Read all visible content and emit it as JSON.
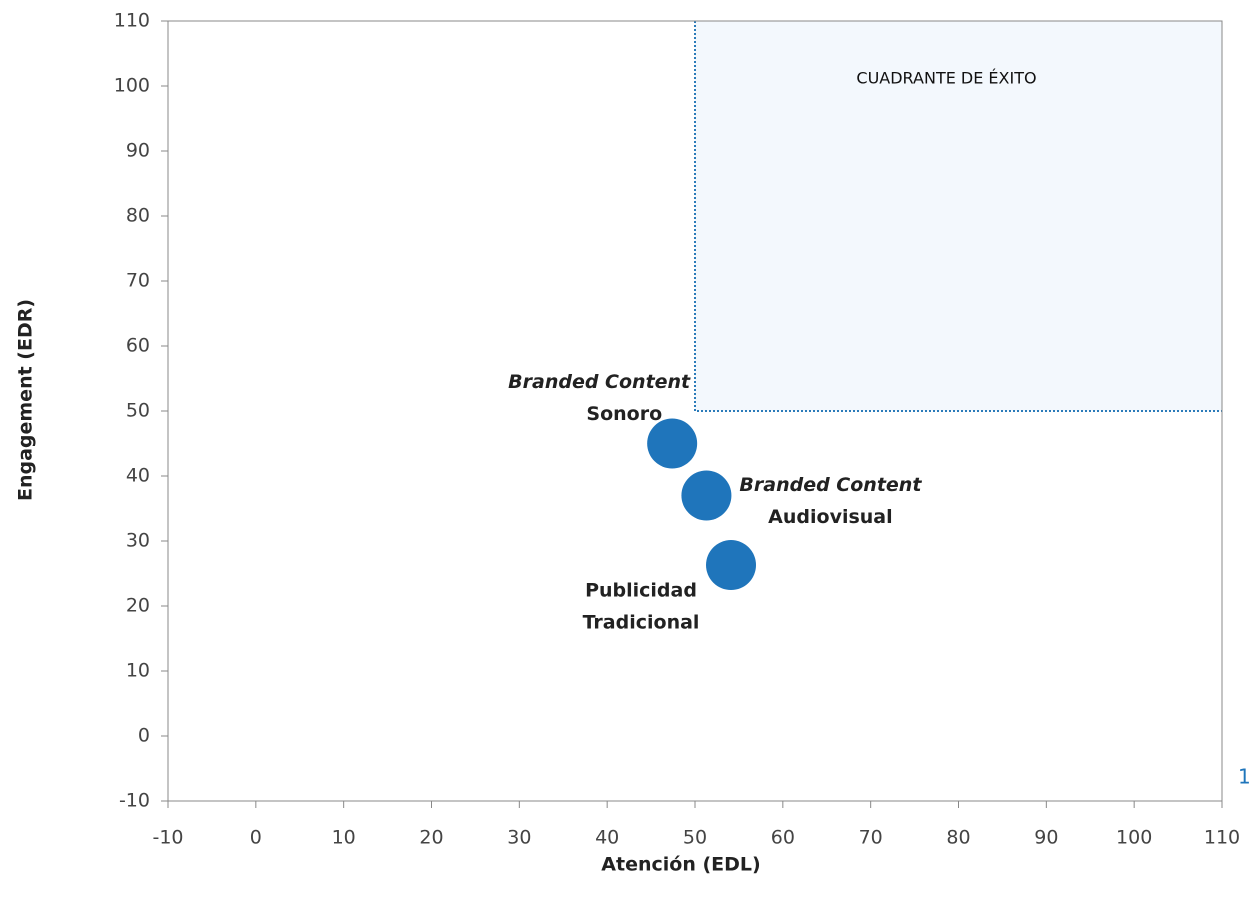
{
  "chart_data": {
    "type": "scatter",
    "xlabel": "Atención (EDL)",
    "ylabel": "Engagement (EDR)",
    "xlim": [
      -10,
      110
    ],
    "ylim": [
      -10,
      110
    ],
    "xticks": [
      -10,
      0,
      10,
      20,
      30,
      40,
      50,
      60,
      70,
      80,
      90,
      100,
      110
    ],
    "yticks": [
      -10,
      0,
      10,
      20,
      30,
      40,
      50,
      60,
      70,
      80,
      90,
      100,
      110
    ],
    "region": {
      "label": "CUADRANTE DE ÉXITO",
      "xlim": [
        50,
        110
      ],
      "ylim": [
        50,
        110
      ],
      "color": "#f3f8fd",
      "border_color": "#2b7bb9"
    },
    "series": [
      {
        "color": "#1f75bb",
        "x": [
          47.4,
          51.3,
          54.1
        ],
        "values": [
          45,
          37,
          26.3
        ],
        "labels": [
          {
            "lines": [
              "Branded Content",
              "Sonoro"
            ],
            "italic_first": true,
            "position": "upper-left"
          },
          {
            "lines": [
              "Branded Content",
              "Audiovisual"
            ],
            "italic_first": true,
            "position": "right"
          },
          {
            "lines": [
              "Publicidad",
              "Tradicional"
            ],
            "italic_first": false,
            "position": "lower-left"
          }
        ]
      }
    ]
  },
  "page_number": "1"
}
